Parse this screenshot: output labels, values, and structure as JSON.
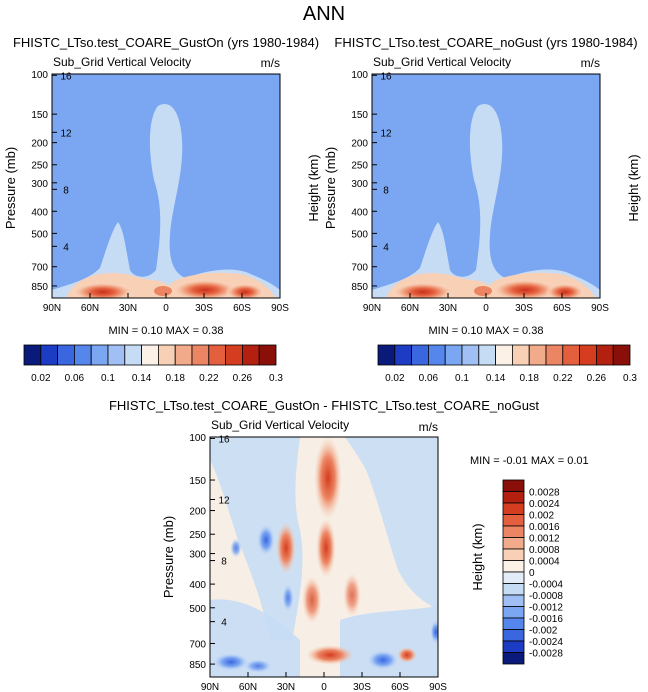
{
  "page_title": "ANN",
  "colors": {
    "base": "#7ba6f2",
    "light": "#c6dcf5",
    "very_light": "#e3ecf9",
    "diff_bg": "#f7efe6"
  },
  "chart_data": [
    {
      "type": "heatmap",
      "title": "FHISTC_LTso.test_COARE_GustOn (yrs 1980-1984)",
      "subtitle_left": "Sub_Grid Vertical Velocity",
      "subtitle_right": "m/s",
      "ylabel": "Pressure (mb)",
      "ylabel_right": "Height (km)",
      "x_ticks": [
        "90N",
        "60N",
        "30N",
        "0",
        "30S",
        "60S",
        "90S"
      ],
      "y_ticks": [
        "100",
        "150",
        "200",
        "250",
        "300",
        "400",
        "500",
        "700",
        "850"
      ],
      "y_ticks_right": [
        "16",
        "12",
        "8",
        "4"
      ],
      "stats_text": "MIN =  0.10  MAX =  0.38",
      "min": 0.1,
      "max": 0.38
    },
    {
      "type": "heatmap",
      "title": "FHISTC_LTso.test_COARE_noGust (yrs 1980-1984)",
      "subtitle_left": "Sub_Grid Vertical Velocity",
      "subtitle_right": "m/s",
      "ylabel": "Pressure (mb)",
      "ylabel_right": "Height (km)",
      "x_ticks": [
        "90N",
        "60N",
        "30N",
        "0",
        "30S",
        "60S",
        "90S"
      ],
      "y_ticks": [
        "100",
        "150",
        "200",
        "250",
        "300",
        "400",
        "500",
        "700",
        "850"
      ],
      "y_ticks_right": [
        "16",
        "12",
        "8",
        "4"
      ],
      "stats_text": "MIN =  0.10  MAX =  0.38",
      "min": 0.1,
      "max": 0.38
    },
    {
      "type": "heatmap",
      "title": "FHISTC_LTso.test_COARE_GustOn - FHISTC_LTso.test_COARE_noGust",
      "subtitle_left": "Sub_Grid Vertical Velocity",
      "subtitle_right": "m/s",
      "ylabel": "Pressure (mb)",
      "ylabel_right": "Height (km)",
      "x_ticks": [
        "90N",
        "60N",
        "30N",
        "0",
        "30S",
        "60S",
        "90S"
      ],
      "y_ticks": [
        "100",
        "150",
        "200",
        "250",
        "300",
        "400",
        "500",
        "700",
        "850"
      ],
      "y_ticks_right": [
        "16",
        "12",
        "8",
        "4"
      ],
      "stats_text": "MIN = -0.01  MAX =  0.01",
      "min": -0.01,
      "max": 0.01
    }
  ],
  "colorbar_top": {
    "colors": [
      "#0a1a7a",
      "#1c3cc4",
      "#3a66e0",
      "#5586ec",
      "#7ba6f2",
      "#a0c0f5",
      "#c6dcf5",
      "#fbf1e6",
      "#f8d0b6",
      "#f2ab8a",
      "#ec8563",
      "#e45f3e",
      "#d43d20",
      "#b3200f",
      "#8a0f08"
    ],
    "labels": [
      "0.02",
      "0.06",
      "0.1",
      "0.14",
      "0.18",
      "0.22",
      "0.26",
      "0.3"
    ]
  },
  "colorbar_diff": {
    "colors": [
      "#8a0f08",
      "#b3200f",
      "#d43d20",
      "#e45f3e",
      "#ec8563",
      "#f2ab8a",
      "#f8d0b6",
      "#fbf1e6",
      "#e3ecf9",
      "#c6dcf5",
      "#a0c0f5",
      "#7ba6f2",
      "#5586ec",
      "#3a66e0",
      "#1c3cc4",
      "#0a1a7a"
    ],
    "labels": [
      "0.0028",
      "0.0024",
      "0.002",
      "0.0016",
      "0.0012",
      "0.0008",
      "0.0004",
      "0",
      "-0.0004",
      "-0.0008",
      "-0.0012",
      "-0.0016",
      "-0.002",
      "-0.0024",
      "-0.0028"
    ]
  }
}
